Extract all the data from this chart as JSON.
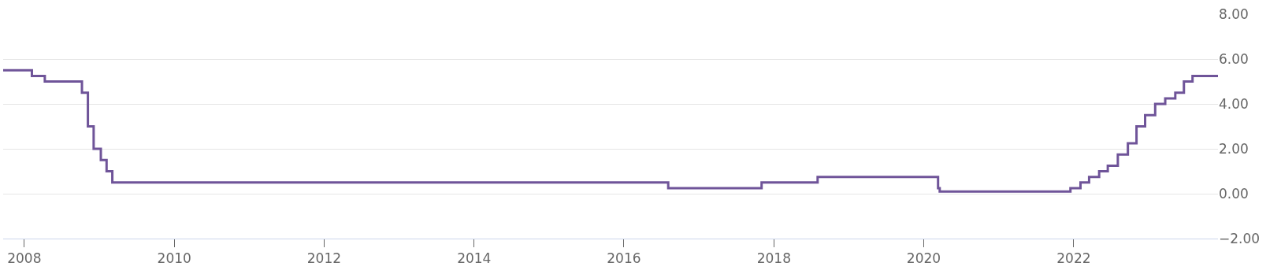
{
  "chart_data": {
    "type": "step",
    "x": [
      "2007-09-20",
      "2008-02-07",
      "2008-04-10",
      "2008-10-08",
      "2008-11-06",
      "2008-12-04",
      "2009-01-08",
      "2009-02-05",
      "2009-03-05",
      "2016-08-04",
      "2017-11-02",
      "2018-08-02",
      "2020-03-11",
      "2020-03-19",
      "2021-12-16",
      "2022-02-03",
      "2022-03-17",
      "2022-05-05",
      "2022-06-16",
      "2022-08-04",
      "2022-09-22",
      "2022-11-03",
      "2022-12-15",
      "2023-02-02",
      "2023-03-23",
      "2023-05-11",
      "2023-06-22",
      "2023-08-03",
      "2023-12-05"
    ],
    "series": [
      {
        "color": "#6f5499",
        "values": [
          5.5,
          5.25,
          5.0,
          4.5,
          3.0,
          2.0,
          1.5,
          1.0,
          0.5,
          0.25,
          0.5,
          0.75,
          0.25,
          0.1,
          0.25,
          0.5,
          0.75,
          1.0,
          1.25,
          1.75,
          2.25,
          3.0,
          3.5,
          4.0,
          4.25,
          4.5,
          5.0,
          5.25,
          5.25
        ]
      }
    ],
    "xlim": [
      "2007-09-20",
      "2023-12-05"
    ],
    "xticks": [
      {
        "value": "2008-01-01",
        "label": "2008"
      },
      {
        "value": "2010-01-01",
        "label": "2010"
      },
      {
        "value": "2012-01-01",
        "label": "2012"
      },
      {
        "value": "2014-01-01",
        "label": "2014"
      },
      {
        "value": "2016-01-01",
        "label": "2016"
      },
      {
        "value": "2018-01-01",
        "label": "2018"
      },
      {
        "value": "2020-01-01",
        "label": "2020"
      },
      {
        "value": "2022-01-01",
        "label": "2022"
      }
    ],
    "ylim": [
      -2,
      8
    ],
    "yticks": [
      {
        "value": -2,
        "label": "−2.00"
      },
      {
        "value": 0,
        "label": "0.00"
      },
      {
        "value": 2,
        "label": "2.00"
      },
      {
        "value": 4,
        "label": "4.00"
      },
      {
        "value": 6,
        "label": "6.00"
      },
      {
        "value": 8,
        "label": "8.00"
      }
    ],
    "grid": "y",
    "line_style": "solid"
  }
}
